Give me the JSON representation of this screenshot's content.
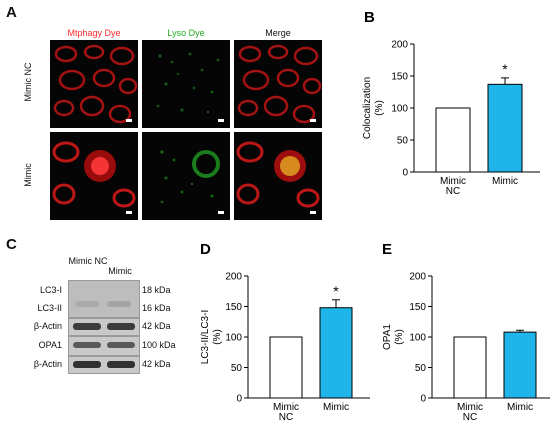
{
  "panel_a": {
    "letter": "A",
    "columns": [
      "Mtphagy Dye",
      "Lyso Dye",
      "Merge"
    ],
    "column_colors": [
      "#ff2a2a",
      "#22aa22",
      "#111111"
    ],
    "rows": [
      "Mimic NC",
      "Mimic"
    ]
  },
  "panel_c": {
    "letter": "C",
    "lanes": [
      "Mimic NC",
      "Mimic"
    ],
    "blots": [
      {
        "label": "LC3-I",
        "kda": "18 kDa"
      },
      {
        "label": "LC3-II",
        "kda": "16 kDa"
      },
      {
        "label": "β-Actin",
        "kda": "42 kDa"
      },
      {
        "label": "OPA1",
        "kda": "100 kDa"
      },
      {
        "label": "β-Actin",
        "kda": "42 kDa"
      }
    ]
  },
  "chart_data": [
    {
      "id": "B",
      "letter": "B",
      "type": "bar",
      "categories": [
        "Mimic NC",
        "Mimic"
      ],
      "values": [
        100,
        137
      ],
      "errors": [
        0,
        10
      ],
      "ylabel": "Colocalization (%)",
      "ylim": [
        0,
        200
      ],
      "yticks": [
        0,
        50,
        100,
        150,
        200
      ],
      "significance": [
        "",
        "*"
      ],
      "colors": [
        "#ffffff",
        "#1fb5ea"
      ]
    },
    {
      "id": "D",
      "letter": "D",
      "type": "bar",
      "categories": [
        "Mimic NC",
        "Mimic"
      ],
      "values": [
        100,
        148
      ],
      "errors": [
        0,
        13
      ],
      "ylabel": "LC3-II/LC3-I (%)",
      "ylim": [
        0,
        200
      ],
      "yticks": [
        0,
        50,
        100,
        150,
        200
      ],
      "significance": [
        "",
        "*"
      ],
      "colors": [
        "#ffffff",
        "#1fb5ea"
      ]
    },
    {
      "id": "E",
      "letter": "E",
      "type": "bar",
      "categories": [
        "Mimic NC",
        "Mimic"
      ],
      "values": [
        100,
        108
      ],
      "errors": [
        0,
        3
      ],
      "ylabel": "OPA1 (%)",
      "ylim": [
        0,
        200
      ],
      "yticks": [
        0,
        50,
        100,
        150,
        200
      ],
      "significance": [
        "",
        ""
      ],
      "colors": [
        "#ffffff",
        "#1fb5ea"
      ]
    }
  ]
}
